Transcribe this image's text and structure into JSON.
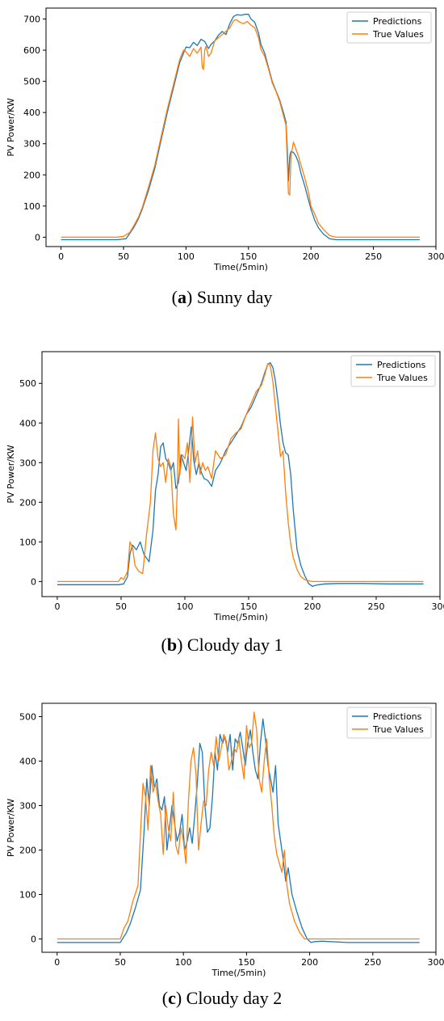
{
  "chart_data": [
    {
      "type": "line",
      "xlabel": "Time(/5min)",
      "ylabel": "PV Power/KW",
      "xlim": [
        -12,
        300
      ],
      "ylim": [
        -30,
        735
      ],
      "xticks": [
        0,
        50,
        100,
        150,
        200,
        250,
        300
      ],
      "yticks": [
        0,
        100,
        200,
        300,
        400,
        500,
        600,
        700
      ],
      "grid": false,
      "legend": "top-right",
      "caption": {
        "letter": "a",
        "text": "Sunny day"
      },
      "series": [
        {
          "name": "Predictions",
          "color": "#1f77b4",
          "x": [
            0,
            45,
            52,
            55,
            58,
            62,
            65,
            70,
            75,
            80,
            85,
            90,
            95,
            100,
            103,
            106,
            109,
            112,
            115,
            118,
            120,
            123,
            126,
            129,
            132,
            135,
            138,
            141,
            144,
            147,
            150,
            152,
            155,
            158,
            160,
            163,
            166,
            169,
            172,
            175,
            178,
            180,
            181,
            182,
            183,
            184,
            186,
            188,
            190,
            192,
            195,
            198,
            200,
            203,
            206,
            210,
            215,
            220,
            230,
            250,
            287
          ],
          "y": [
            -8,
            -8,
            -5,
            12,
            30,
            60,
            90,
            150,
            220,
            310,
            400,
            480,
            560,
            610,
            608,
            625,
            615,
            635,
            628,
            605,
            618,
            630,
            648,
            660,
            650,
            685,
            708,
            714,
            712,
            715,
            715,
            700,
            690,
            655,
            618,
            590,
            545,
            500,
            470,
            440,
            400,
            370,
            290,
            180,
            260,
            275,
            272,
            260,
            240,
            205,
            165,
            120,
            90,
            55,
            30,
            10,
            -5,
            -8,
            -8,
            -8,
            -8
          ]
        },
        {
          "name": "True Values",
          "color": "#ff7f0e",
          "x": [
            0,
            45,
            50,
            55,
            58,
            62,
            65,
            70,
            75,
            80,
            85,
            90,
            95,
            98,
            100,
            103,
            106,
            109,
            112,
            113,
            114,
            115,
            116,
            118,
            120,
            123,
            126,
            129,
            132,
            135,
            138,
            140,
            143,
            146,
            149,
            152,
            155,
            158,
            160,
            163,
            166,
            169,
            172,
            175,
            178,
            180,
            181,
            182,
            183,
            184,
            186,
            188,
            190,
            192,
            195,
            198,
            200,
            203,
            206,
            210,
            215,
            220,
            230,
            250,
            287
          ],
          "y": [
            0,
            0,
            3,
            15,
            35,
            65,
            95,
            160,
            230,
            320,
            410,
            490,
            570,
            600,
            595,
            580,
            605,
            590,
            610,
            545,
            538,
            600,
            612,
            580,
            590,
            630,
            640,
            650,
            660,
            672,
            694,
            698,
            690,
            685,
            692,
            680,
            672,
            640,
            602,
            580,
            540,
            495,
            468,
            435,
            390,
            360,
            250,
            140,
            135,
            260,
            305,
            282,
            260,
            232,
            190,
            145,
            100,
            75,
            45,
            25,
            5,
            0,
            0,
            0,
            0
          ]
        }
      ]
    },
    {
      "type": "line",
      "xlabel": "Time(/5min)",
      "ylabel": "PV Power/KW",
      "xlim": [
        -12,
        300
      ],
      "ylim": [
        -38,
        580
      ],
      "xticks": [
        0,
        50,
        100,
        150,
        200,
        250,
        300
      ],
      "yticks": [
        0,
        100,
        200,
        300,
        400,
        500
      ],
      "grid": false,
      "legend": "top-right",
      "caption": {
        "letter": "b",
        "text": "Cloudy day 1"
      },
      "series": [
        {
          "name": "Predictions",
          "color": "#1f77b4",
          "x": [
            0,
            48,
            52,
            55,
            57,
            59,
            62,
            65,
            68,
            72,
            75,
            77,
            79,
            81,
            83,
            85,
            87,
            89,
            91,
            93,
            95,
            97,
            99,
            101,
            103,
            105,
            107,
            109,
            111,
            113,
            115,
            118,
            121,
            124,
            128,
            132,
            136,
            140,
            144,
            148,
            152,
            156,
            160,
            163,
            165,
            167,
            169,
            171,
            173,
            175,
            177,
            179,
            181,
            183,
            185,
            188,
            191,
            194,
            197,
            200,
            202,
            205,
            210,
            220,
            240,
            260,
            287
          ],
          "y": [
            -8,
            -8,
            -6,
            12,
            70,
            92,
            80,
            100,
            68,
            50,
            130,
            230,
            270,
            340,
            350,
            310,
            300,
            280,
            300,
            235,
            250,
            320,
            300,
            280,
            330,
            390,
            305,
            270,
            300,
            275,
            260,
            255,
            240,
            280,
            300,
            330,
            350,
            370,
            390,
            420,
            440,
            470,
            500,
            530,
            548,
            552,
            540,
            505,
            455,
            395,
            350,
            325,
            320,
            270,
            180,
            80,
            40,
            15,
            -5,
            -12,
            -10,
            -8,
            -6,
            -5,
            -5,
            -6,
            -6
          ]
        },
        {
          "name": "True Values",
          "color": "#ff7f0e",
          "x": [
            0,
            48,
            50,
            52,
            55,
            57,
            59,
            61,
            64,
            67,
            70,
            73,
            75,
            77,
            79,
            81,
            83,
            85,
            87,
            89,
            91,
            93,
            94,
            95,
            96,
            98,
            100,
            102,
            104,
            106,
            108,
            110,
            112,
            114,
            116,
            118,
            121,
            124,
            128,
            132,
            136,
            140,
            144,
            148,
            152,
            156,
            160,
            163,
            165,
            167,
            169,
            171,
            173,
            175,
            177,
            179,
            181,
            183,
            185,
            188,
            191,
            194,
            197,
            200,
            203,
            206,
            210,
            220,
            240,
            260,
            287
          ],
          "y": [
            0,
            0,
            10,
            5,
            25,
            100,
            85,
            40,
            25,
            20,
            120,
            200,
            330,
            375,
            310,
            290,
            300,
            250,
            310,
            290,
            170,
            130,
            230,
            410,
            270,
            320,
            310,
            350,
            250,
            415,
            300,
            330,
            270,
            300,
            280,
            290,
            260,
            330,
            310,
            320,
            360,
            375,
            385,
            420,
            450,
            480,
            495,
            525,
            550,
            545,
            505,
            440,
            380,
            315,
            330,
            225,
            150,
            95,
            60,
            30,
            12,
            5,
            2,
            0,
            0,
            0,
            0,
            0,
            0,
            0,
            0
          ]
        }
      ]
    },
    {
      "type": "line",
      "xlabel": "Time(/5min)",
      "ylabel": "PV Power/KW",
      "xlim": [
        -12,
        300
      ],
      "ylim": [
        -30,
        530
      ],
      "xticks": [
        0,
        50,
        100,
        150,
        200,
        250,
        300
      ],
      "yticks": [
        0,
        100,
        200,
        300,
        400,
        500
      ],
      "grid": false,
      "legend": "top-right",
      "caption": {
        "letter": "c",
        "text": "Cloudy day 2"
      },
      "series": [
        {
          "name": "Predictions",
          "color": "#1f77b4",
          "x": [
            0,
            50,
            55,
            58,
            62,
            66,
            69,
            71,
            73,
            75,
            77,
            79,
            81,
            83,
            85,
            87,
            89,
            91,
            93,
            95,
            97,
            99,
            101,
            103,
            105,
            107,
            109,
            111,
            113,
            115,
            117,
            119,
            121,
            123,
            125,
            127,
            129,
            131,
            133,
            135,
            137,
            139,
            141,
            143,
            145,
            147,
            149,
            151,
            153,
            155,
            157,
            159,
            161,
            163,
            165,
            167,
            169,
            171,
            173,
            175,
            177,
            179,
            181,
            183,
            186,
            190,
            194,
            198,
            201,
            204,
            210,
            230,
            287
          ],
          "y": [
            -8,
            -8,
            15,
            35,
            70,
            110,
            250,
            360,
            300,
            390,
            340,
            360,
            300,
            290,
            320,
            200,
            250,
            300,
            260,
            220,
            240,
            280,
            200,
            220,
            250,
            215,
            280,
            350,
            440,
            420,
            300,
            240,
            250,
            320,
            420,
            380,
            460,
            440,
            455,
            420,
            460,
            380,
            450,
            440,
            465,
            430,
            390,
            440,
            470,
            420,
            380,
            360,
            440,
            495,
            450,
            390,
            360,
            330,
            390,
            260,
            220,
            180,
            130,
            160,
            100,
            60,
            25,
            0,
            -8,
            -6,
            -5,
            -8,
            -8
          ]
        },
        {
          "name": "True Values",
          "color": "#ff7f0e",
          "x": [
            0,
            50,
            53,
            56,
            60,
            64,
            68,
            70,
            72,
            74,
            76,
            78,
            80,
            82,
            84,
            86,
            88,
            90,
            92,
            94,
            96,
            98,
            100,
            102,
            104,
            106,
            108,
            110,
            112,
            114,
            116,
            118,
            120,
            122,
            124,
            126,
            128,
            130,
            132,
            134,
            136,
            138,
            140,
            142,
            144,
            146,
            148,
            150,
            152,
            154,
            156,
            158,
            160,
            162,
            164,
            166,
            168,
            170,
            172,
            174,
            176,
            178,
            180,
            182,
            184,
            188,
            192,
            196,
            200,
            204,
            210,
            230,
            287
          ],
          "y": [
            0,
            0,
            25,
            40,
            85,
            120,
            350,
            320,
            245,
            390,
            330,
            350,
            310,
            280,
            190,
            300,
            250,
            220,
            330,
            210,
            190,
            250,
            220,
            170,
            310,
            400,
            430,
            370,
            200,
            260,
            310,
            300,
            380,
            420,
            390,
            455,
            400,
            430,
            460,
            445,
            380,
            400,
            430,
            420,
            450,
            400,
            360,
            480,
            430,
            440,
            510,
            470,
            360,
            330,
            400,
            450,
            360,
            300,
            230,
            190,
            170,
            150,
            200,
            120,
            80,
            40,
            15,
            0,
            0,
            0,
            0,
            0,
            0
          ]
        }
      ]
    }
  ]
}
